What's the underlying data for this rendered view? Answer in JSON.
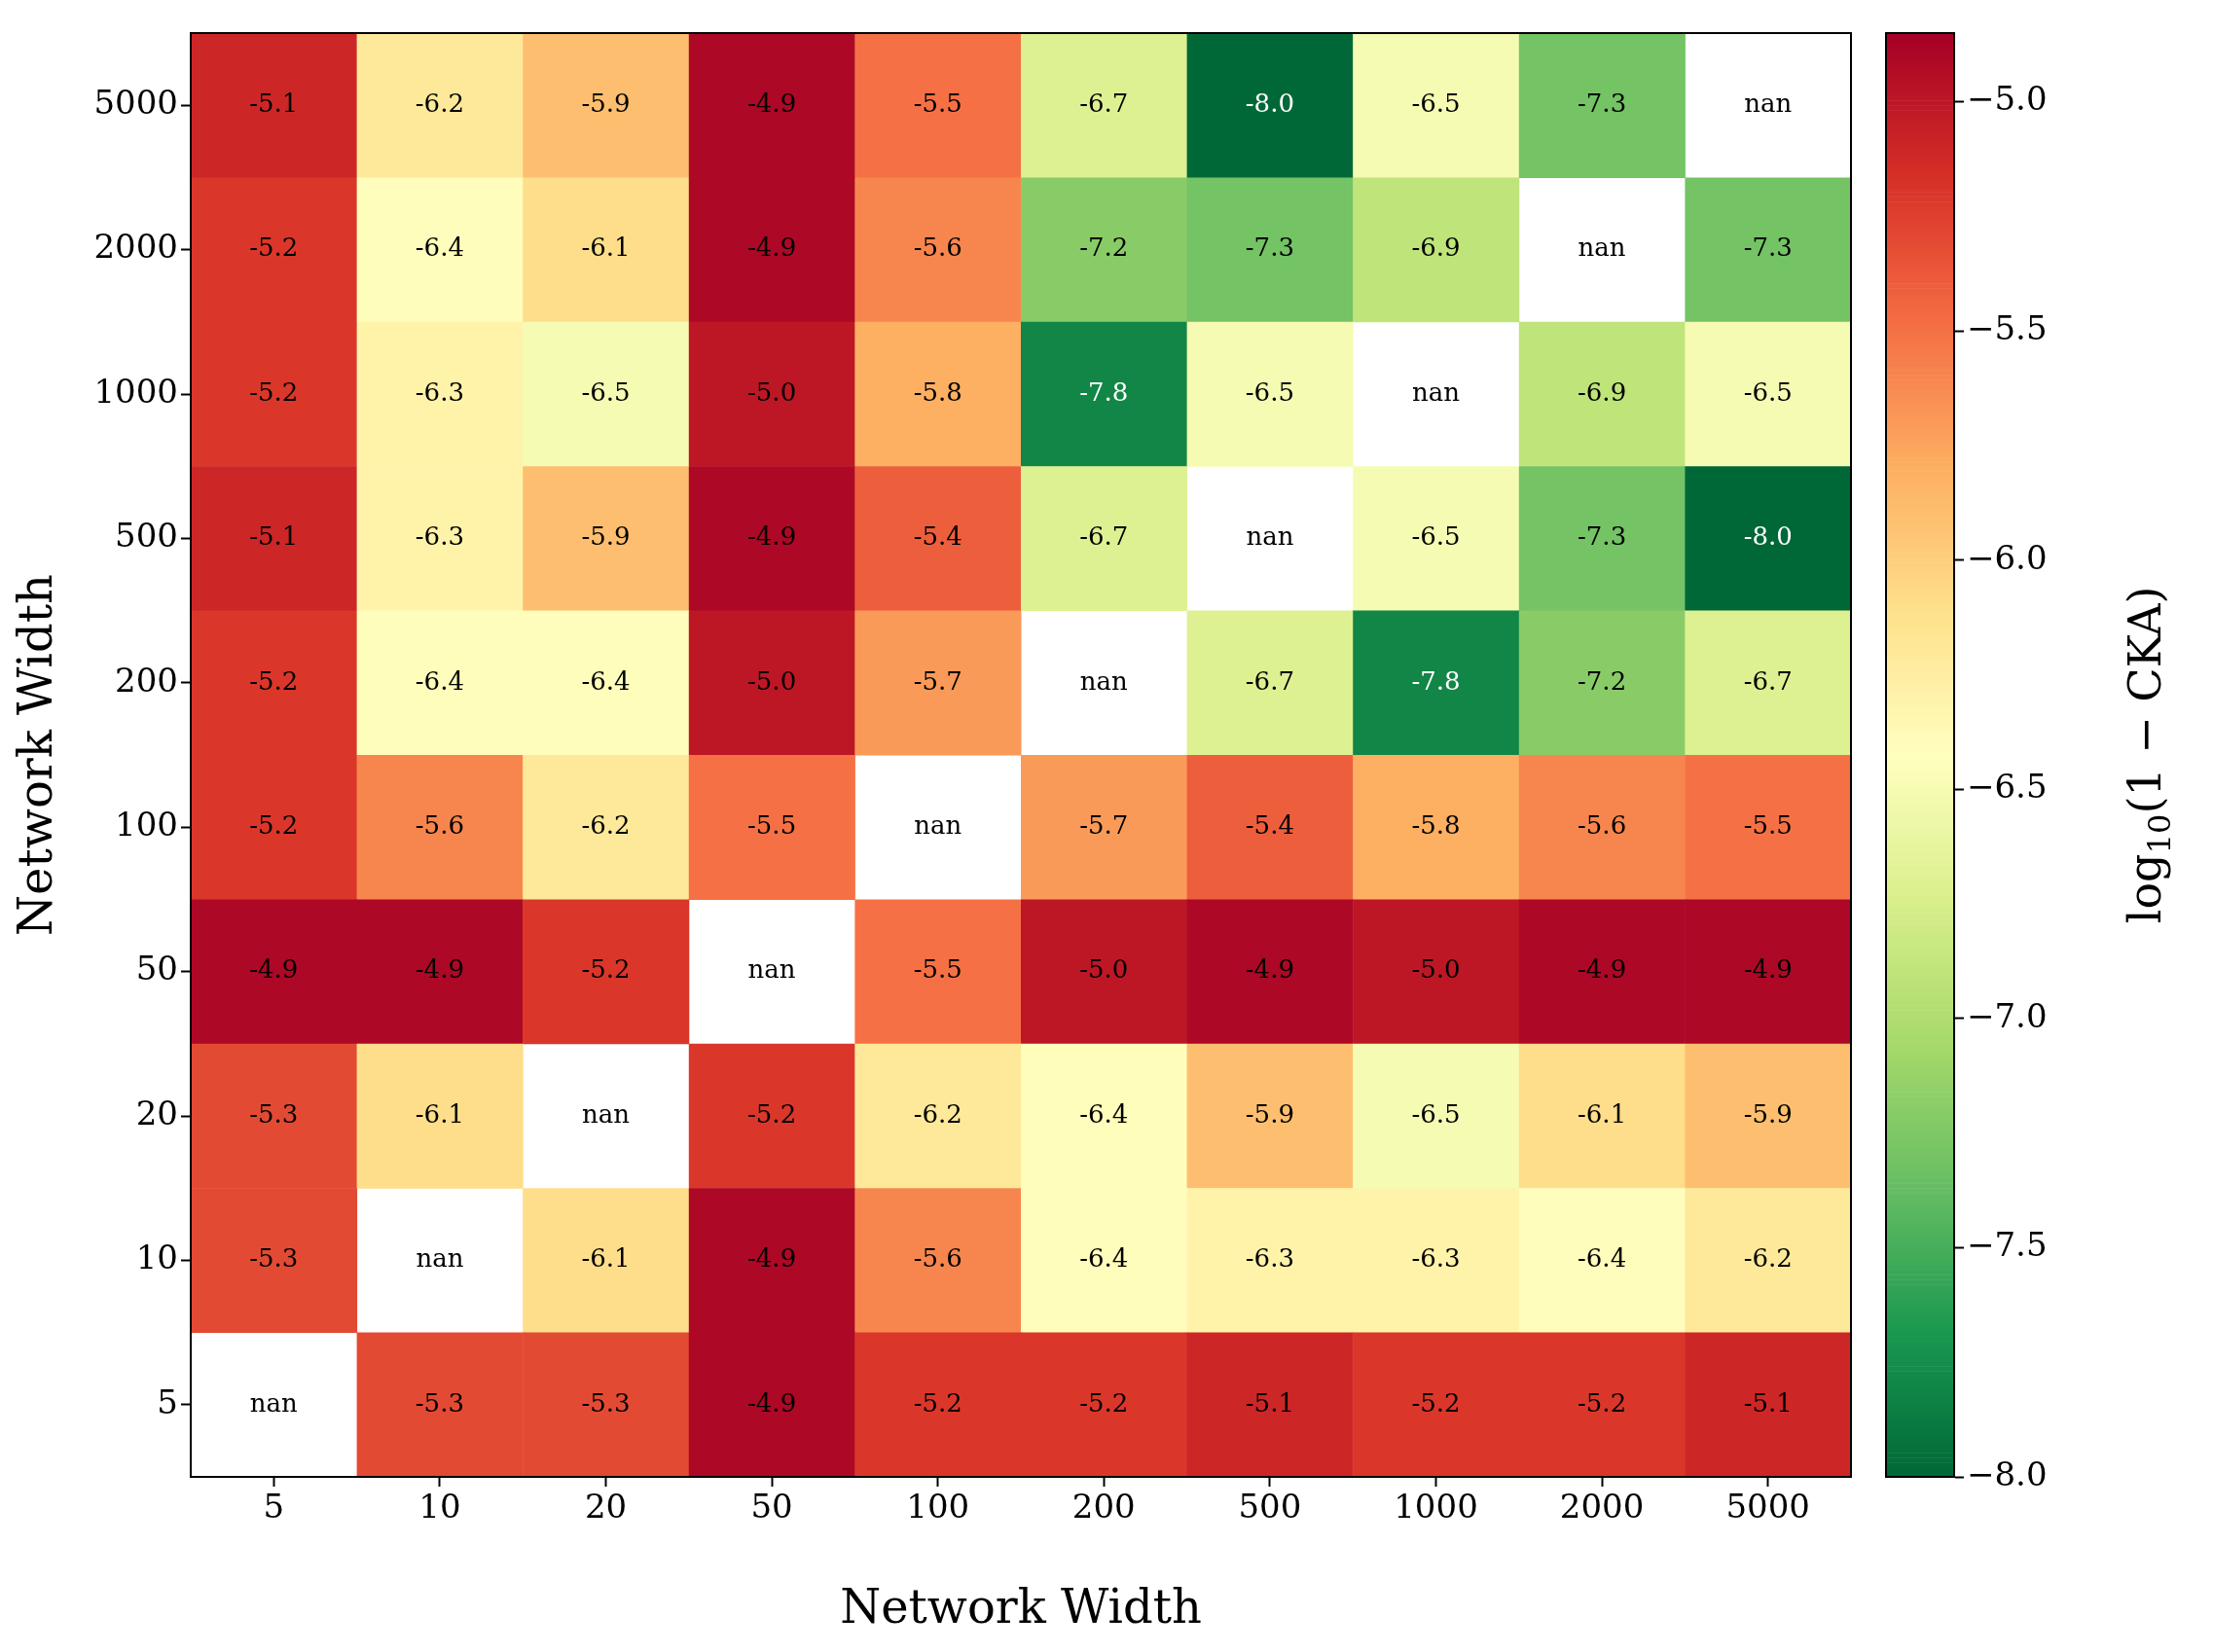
{
  "chart_data": {
    "type": "heatmap",
    "xlabel": "Network Width",
    "ylabel": "Network Width",
    "clabel": "log$_{10}$(1 − CKA)",
    "categories": [
      "5",
      "10",
      "20",
      "50",
      "100",
      "200",
      "500",
      "1000",
      "2000",
      "5000"
    ],
    "y_categories": [
      "5000",
      "2000",
      "1000",
      "500",
      "200",
      "100",
      "50",
      "20",
      "10",
      "5"
    ],
    "cells": [
      [
        -5.1,
        -6.2,
        -5.9,
        -4.9,
        -5.5,
        -6.7,
        -8.0,
        -6.5,
        -7.3,
        null
      ],
      [
        -5.2,
        -6.4,
        -6.1,
        -4.9,
        -5.6,
        -7.2,
        -7.3,
        -6.9,
        null,
        -7.3
      ],
      [
        -5.2,
        -6.3,
        -6.5,
        -5.0,
        -5.8,
        -7.8,
        -6.5,
        null,
        -6.9,
        -6.5
      ],
      [
        -5.1,
        -6.3,
        -5.9,
        -4.9,
        -5.4,
        -6.7,
        null,
        -6.5,
        -7.3,
        -8.0
      ],
      [
        -5.2,
        -6.4,
        -6.4,
        -5.0,
        -5.7,
        null,
        -6.7,
        -7.8,
        -7.2,
        -6.7
      ],
      [
        -5.2,
        -5.6,
        -6.2,
        -5.5,
        null,
        -5.7,
        -5.4,
        -5.8,
        -5.6,
        -5.5
      ],
      [
        -4.9,
        -4.9,
        -5.2,
        null,
        -5.5,
        -5.0,
        -4.9,
        -5.0,
        -4.9,
        -4.9
      ],
      [
        -5.3,
        -6.1,
        null,
        -5.2,
        -6.2,
        -6.4,
        -5.9,
        -6.5,
        -6.1,
        -5.9
      ],
      [
        -5.3,
        null,
        -6.1,
        -4.9,
        -5.6,
        -6.4,
        -6.3,
        -6.3,
        -6.4,
        -6.2
      ],
      [
        null,
        -5.3,
        -5.3,
        -4.9,
        -5.2,
        -5.2,
        -5.1,
        -5.2,
        -5.2,
        -5.1
      ]
    ],
    "cell_labels": [
      [
        "-5.1",
        "-6.2",
        "-5.9",
        "-4.9",
        "-5.5",
        "-6.7",
        "-8.0",
        "-6.5",
        "-7.3",
        "nan"
      ],
      [
        "-5.2",
        "-6.4",
        "-6.1",
        "-4.9",
        "-5.6",
        "-7.2",
        "-7.3",
        "-6.9",
        "nan",
        "-7.3"
      ],
      [
        "-5.2",
        "-6.3",
        "-6.5",
        "-5.0",
        "-5.8",
        "-7.8",
        "-6.5",
        "nan",
        "-6.9",
        "-6.5"
      ],
      [
        "-5.1",
        "-6.3",
        "-5.9",
        "-4.9",
        "-5.4",
        "-6.7",
        "nan",
        "-6.5",
        "-7.3",
        "-8.0"
      ],
      [
        "-5.2",
        "-6.4",
        "-6.4",
        "-5.0",
        "-5.7",
        "nan",
        "-6.7",
        "-7.8",
        "-7.2",
        "-6.7"
      ],
      [
        "-5.2",
        "-5.6",
        "-6.2",
        "-5.5",
        "nan",
        "-5.7",
        "-5.4",
        "-5.8",
        "-5.6",
        "-5.5"
      ],
      [
        "-4.9",
        "-4.9",
        "-5.2",
        "nan",
        "-5.5",
        "-5.0",
        "-4.9",
        "-5.0",
        "-4.9",
        "-4.9"
      ],
      [
        "-5.3",
        "-6.1",
        "nan",
        "-5.2",
        "-6.2",
        "-6.4",
        "-5.9",
        "-6.5",
        "-6.1",
        "-5.9"
      ],
      [
        "-5.3",
        "nan",
        "-6.1",
        "-4.9",
        "-5.6",
        "-6.4",
        "-6.3",
        "-6.3",
        "-6.4",
        "-6.2"
      ],
      [
        "nan",
        "-5.3",
        "-5.3",
        "-4.9",
        "-5.2",
        "-5.2",
        "-5.1",
        "-5.2",
        "-5.2",
        "-5.1"
      ]
    ],
    "clim": [
      -8.0,
      -4.85
    ],
    "cticks": [
      {
        "value": -8.0,
        "label": "−8.0"
      },
      {
        "value": -7.5,
        "label": "−7.5"
      },
      {
        "value": -7.0,
        "label": "−7.0"
      },
      {
        "value": -6.5,
        "label": "−6.5"
      },
      {
        "value": -6.0,
        "label": "−6.0"
      },
      {
        "value": -5.5,
        "label": "−5.5"
      },
      {
        "value": -5.0,
        "label": "−5.0"
      }
    ]
  }
}
